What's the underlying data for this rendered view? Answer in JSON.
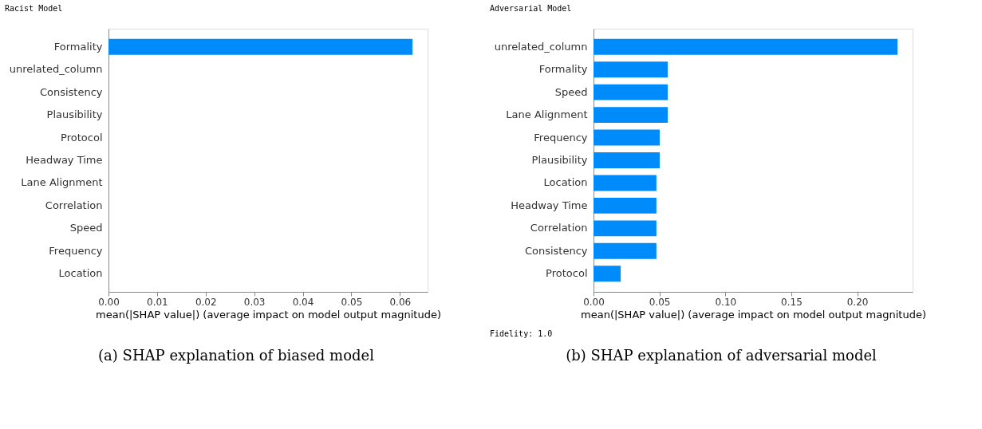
{
  "chart_data": [
    {
      "type": "bar",
      "orientation": "horizontal",
      "title": "Racist Model",
      "categories": [
        "Formality",
        "unrelated_column",
        "Consistency",
        "Plausibility",
        "Protocol",
        "Headway Time",
        "Lane Alignment",
        "Correlation",
        "Speed",
        "Frequency",
        "Location"
      ],
      "values": [
        0.0626,
        0,
        0,
        0,
        0,
        0,
        0,
        0,
        0,
        0,
        0
      ],
      "color": "#008bfb",
      "xlim": [
        0,
        0.0657
      ],
      "xticks": [
        {
          "value": 0,
          "label": "0.00"
        },
        0.01,
        0.02,
        0.03,
        0.04,
        0.05,
        0.06
      ],
      "xlabel": "mean(|SHAP value|) (average impact on model output magnitude)",
      "grid": false,
      "annotations": [
        "(a) SHAP explanation of biased model"
      ]
    },
    {
      "type": "bar",
      "orientation": "horizontal",
      "title": "Adversarial Model",
      "categories": [
        "unrelated_column",
        "Formality",
        "Speed",
        "Lane Alignment",
        "Frequency",
        "Plausibility",
        "Location",
        "Headway Time",
        "Correlation",
        "Consistency",
        "Protocol"
      ],
      "values": [
        0.2306,
        0.0563,
        0.0563,
        0.0563,
        0.0502,
        0.0502,
        0.0477,
        0.0477,
        0.0477,
        0.0477,
        0.0206
      ],
      "color": "#008bfb",
      "xlim": [
        0,
        0.242
      ],
      "xticks": [
        {
          "value": 0,
          "label": "0.00"
        },
        0.05,
        {
          "value": 0.1,
          "label": "0.10"
        },
        0.15,
        {
          "value": 0.2,
          "label": "0.20"
        }
      ],
      "xlabel": "mean(|SHAP value|) (average impact on model output magnitude)",
      "grid": false,
      "annotations": [
        "Fidelity: 1.0",
        "(b) SHAP explanation of adversarial model"
      ]
    }
  ]
}
